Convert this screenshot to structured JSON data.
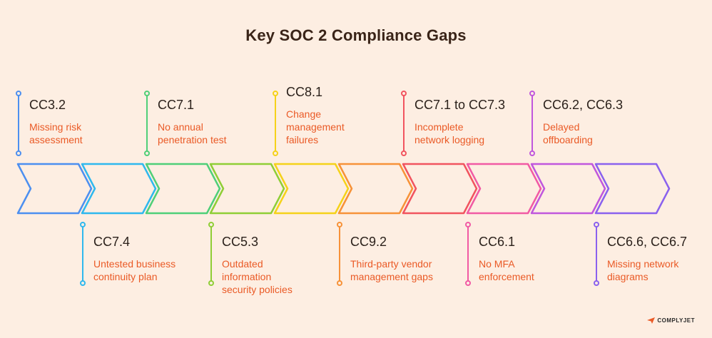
{
  "title": "Key SOC 2 Compliance Gaps",
  "brand": {
    "icon": "plane-logo-icon",
    "name": "COMPLYJET"
  },
  "colors": {
    "background": "#fdeee2",
    "title": "#3a2418",
    "code": "#2b211b",
    "description": "#ea5a26"
  },
  "steps": [
    {
      "code": "CC3.2",
      "desc": "Missing risk assessment",
      "lines": [
        "Missing risk",
        "assessment"
      ],
      "color": "#4c8ff0",
      "position": "top"
    },
    {
      "code": "CC7.4",
      "desc": "Untested business continuity plan",
      "lines": [
        "Untested business",
        "continuity plan"
      ],
      "color": "#2fb8ee",
      "position": "bottom"
    },
    {
      "code": "CC7.1",
      "desc": "No annual penetration test",
      "lines": [
        "No annual",
        "penetration test"
      ],
      "color": "#4fcf78",
      "position": "top"
    },
    {
      "code": "CC5.3",
      "desc": "Outdated information security policies",
      "lines": [
        "Outdated",
        "information",
        "security policies"
      ],
      "color": "#8fce36",
      "position": "bottom"
    },
    {
      "code": "CC8.1",
      "desc": "Change management failures",
      "lines": [
        "Change",
        "management",
        "failures"
      ],
      "color": "#f5d21a",
      "position": "top"
    },
    {
      "code": "CC9.2",
      "desc": "Third-party vendor management gaps",
      "lines": [
        "Third-party vendor",
        "management gaps"
      ],
      "color": "#f79238",
      "position": "bottom"
    },
    {
      "code": "CC7.1 to CC7.3",
      "desc": "Incomplete network logging",
      "lines": [
        "Incomplete",
        "network logging"
      ],
      "color": "#f1545f",
      "position": "top"
    },
    {
      "code": "CC6.1",
      "desc": "No MFA enforcement",
      "lines": [
        "No MFA",
        "enforcement"
      ],
      "color": "#f15aa4",
      "position": "bottom"
    },
    {
      "code": "CC6.2, CC6.3",
      "desc": "Delayed offboarding",
      "lines": [
        "Delayed",
        "offboarding"
      ],
      "color": "#c057dd",
      "position": "top"
    },
    {
      "code": "CC6.6, CC6.7",
      "desc": "Missing network diagrams",
      "lines": [
        "Missing network",
        "diagrams"
      ],
      "color": "#8a61ee",
      "position": "bottom"
    }
  ]
}
